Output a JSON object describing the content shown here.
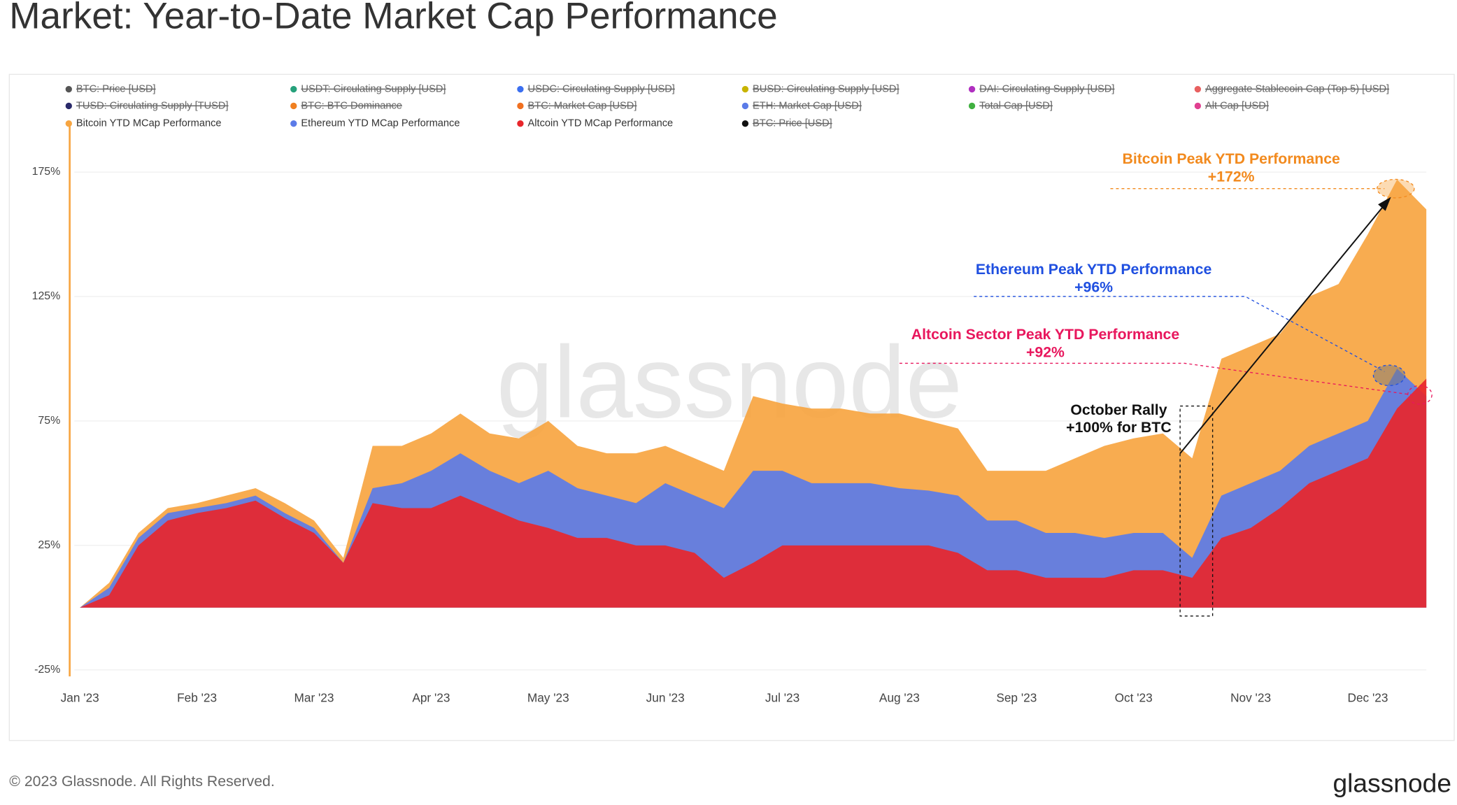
{
  "header": {
    "title": "Market: Year-to-Date Market Cap Performance"
  },
  "chart_data": {
    "type": "area",
    "categories": [
      "Jan '23",
      null,
      null,
      null,
      "Feb '23",
      null,
      null,
      null,
      "Mar '23",
      null,
      null,
      null,
      "Apr '23",
      null,
      null,
      null,
      "May '23",
      null,
      null,
      null,
      "Jun '23",
      null,
      null,
      null,
      "Jul '23",
      null,
      null,
      null,
      "Aug '23",
      null,
      null,
      null,
      "Sep '23",
      null,
      null,
      null,
      "Oct '23",
      null,
      null,
      null,
      "Nov '23",
      null,
      null,
      null,
      "Dec '23",
      null,
      null
    ],
    "series": [
      {
        "name": "Bitcoin YTD MCap Performance",
        "color": "#f7a541",
        "values": [
          0,
          10,
          30,
          40,
          42,
          45,
          48,
          42,
          35,
          20,
          65,
          65,
          70,
          78,
          70,
          68,
          75,
          65,
          62,
          62,
          65,
          60,
          55,
          85,
          82,
          80,
          80,
          78,
          78,
          75,
          72,
          55,
          55,
          55,
          60,
          65,
          68,
          70,
          60,
          100,
          105,
          110,
          125,
          130,
          150,
          172,
          160
        ]
      },
      {
        "name": "Ethereum YTD MCap Performance",
        "color": "#5b7be8",
        "values": [
          0,
          8,
          28,
          38,
          40,
          42,
          45,
          38,
          32,
          18,
          48,
          50,
          55,
          62,
          55,
          50,
          55,
          48,
          45,
          42,
          50,
          45,
          40,
          55,
          55,
          50,
          50,
          50,
          48,
          47,
          45,
          35,
          35,
          30,
          30,
          28,
          30,
          30,
          20,
          45,
          50,
          55,
          65,
          70,
          75,
          96,
          85
        ]
      },
      {
        "name": "Altcoin YTD MCap Performance",
        "color": "#e8262b",
        "values": [
          0,
          5,
          25,
          35,
          38,
          40,
          43,
          36,
          30,
          18,
          42,
          40,
          40,
          45,
          40,
          35,
          32,
          28,
          28,
          25,
          25,
          22,
          12,
          18,
          25,
          25,
          25,
          25,
          25,
          25,
          22,
          15,
          15,
          12,
          12,
          12,
          15,
          15,
          12,
          28,
          32,
          40,
          50,
          55,
          60,
          80,
          92
        ]
      }
    ],
    "legend_hidden": [
      {
        "name": "BTC: Price [USD]",
        "color": "#555555"
      },
      {
        "name": "USDT: Circulating Supply [USD]",
        "color": "#26a17b"
      },
      {
        "name": "USDC: Circulating Supply [USD]",
        "color": "#3b6ff0"
      },
      {
        "name": "BUSD: Circulating Supply [USD]",
        "color": "#c8b400"
      },
      {
        "name": "DAI: Circulating Supply [USD]",
        "color": "#b030c0"
      },
      {
        "name": "Aggregate Stablecoin Cap (Top 5) [USD]",
        "color": "#e86060"
      },
      {
        "name": "TUSD: Circulating Supply [TUSD]",
        "color": "#2a2a6a"
      },
      {
        "name": "BTC: BTC Dominance",
        "color": "#f08020"
      },
      {
        "name": "BTC: Market Cap [USD]",
        "color": "#f07020"
      },
      {
        "name": "ETH: Market Cap [USD]",
        "color": "#5b7be8"
      },
      {
        "name": "Total Cap [USD]",
        "color": "#40b040"
      },
      {
        "name": "Alt Cap [USD]",
        "color": "#e04090"
      },
      {
        "name": "BTC: Price [USD]",
        "color": "#111111"
      }
    ],
    "ylim": [
      -28,
      190
    ],
    "yticks": [
      {
        "value": -25,
        "label": "-25%"
      },
      {
        "value": 25,
        "label": "25%"
      },
      {
        "value": 75,
        "label": "75%"
      },
      {
        "value": 125,
        "label": "125%"
      },
      {
        "value": 175,
        "label": "175%"
      }
    ],
    "grid": true,
    "watermark": "glassnode",
    "annotations": [
      {
        "text": "Bitcoin Peak YTD Performance",
        "color": "#f28a1e"
      },
      {
        "text": "+172%",
        "color": "#f28a1e"
      },
      {
        "text": "Ethereum Peak YTD Performance",
        "color": "#1f4fe0"
      },
      {
        "text": "+96%",
        "color": "#1f4fe0"
      },
      {
        "text": "Altcoin Sector Peak YTD Performance",
        "color": "#e8175d"
      },
      {
        "text": "+92%",
        "color": "#e8175d"
      },
      {
        "text": "October Rally",
        "color": "#111111"
      },
      {
        "text": "+100% for BTC",
        "color": "#111111"
      }
    ]
  },
  "footer": {
    "copyright": "© 2023 Glassnode. All Rights Reserved.",
    "logo": "glassnode"
  }
}
